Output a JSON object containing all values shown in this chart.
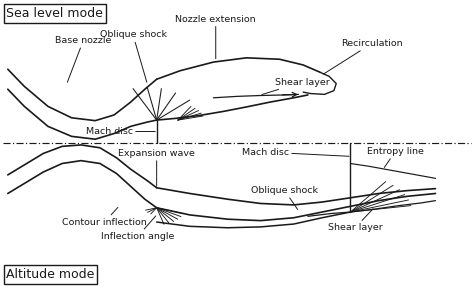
{
  "bg_color": "#ffffff",
  "line_color": "#1a1a1a",
  "title_sea": "Sea level mode",
  "title_alt": "Altitude mode",
  "labels": {
    "base_nozzle": "Base nozzle",
    "oblique_shock_sea": "Oblique shock",
    "nozzle_extension": "Nozzle extension",
    "recirculation": "Recirculation",
    "shear_layer_sea": "Shear layer",
    "mach_disc_sea": "Mach disc",
    "expansion_wave": "Expansion wave",
    "contour_inflection": "Contour inflection",
    "inflection_angle": "Inflection angle",
    "mach_disc_alt": "Mach disc",
    "oblique_shock_alt": "Oblique shock",
    "shear_layer_alt": "Shear layer",
    "entropy_line": "Entropy line"
  },
  "font_size_title": 9,
  "font_size_label": 6.8
}
